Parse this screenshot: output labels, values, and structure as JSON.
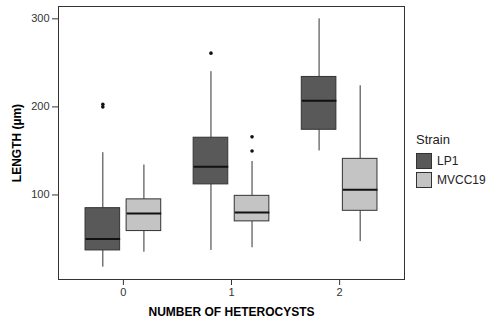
{
  "chart_data": {
    "type": "box",
    "x_label": "NUMBER OF HETEROCYSTS",
    "y_label": "LENGTH (µm)",
    "legend_title": "Strain",
    "legend": "right",
    "grid": false,
    "categories": [
      "0",
      "1",
      "2"
    ],
    "ylim": [
      4,
      314
    ],
    "yticks": [
      100,
      200,
      300
    ],
    "series": [
      {
        "name": "LP1",
        "color": "#595959",
        "values": [
          {
            "min": 18,
            "q1": 37,
            "median": 50,
            "q3": 85,
            "max": 148,
            "outliers": [
              200,
              203
            ]
          },
          {
            "min": 37,
            "q1": 112,
            "median": 132,
            "q3": 165,
            "max": 240,
            "outliers": [
              261
            ]
          },
          {
            "min": 150,
            "q1": 174,
            "median": 207,
            "q3": 234,
            "max": 300,
            "outliers": []
          }
        ]
      },
      {
        "name": "MVCC19",
        "color": "#c4c4c4",
        "values": [
          {
            "min": 35,
            "q1": 59,
            "median": 79,
            "q3": 95,
            "max": 134,
            "outliers": []
          },
          {
            "min": 40,
            "q1": 70,
            "median": 80,
            "q3": 99,
            "max": 138,
            "outliers": [
              150,
              166
            ]
          },
          {
            "min": 47,
            "q1": 82,
            "median": 106,
            "q3": 141,
            "max": 224,
            "outliers": []
          }
        ]
      }
    ]
  }
}
